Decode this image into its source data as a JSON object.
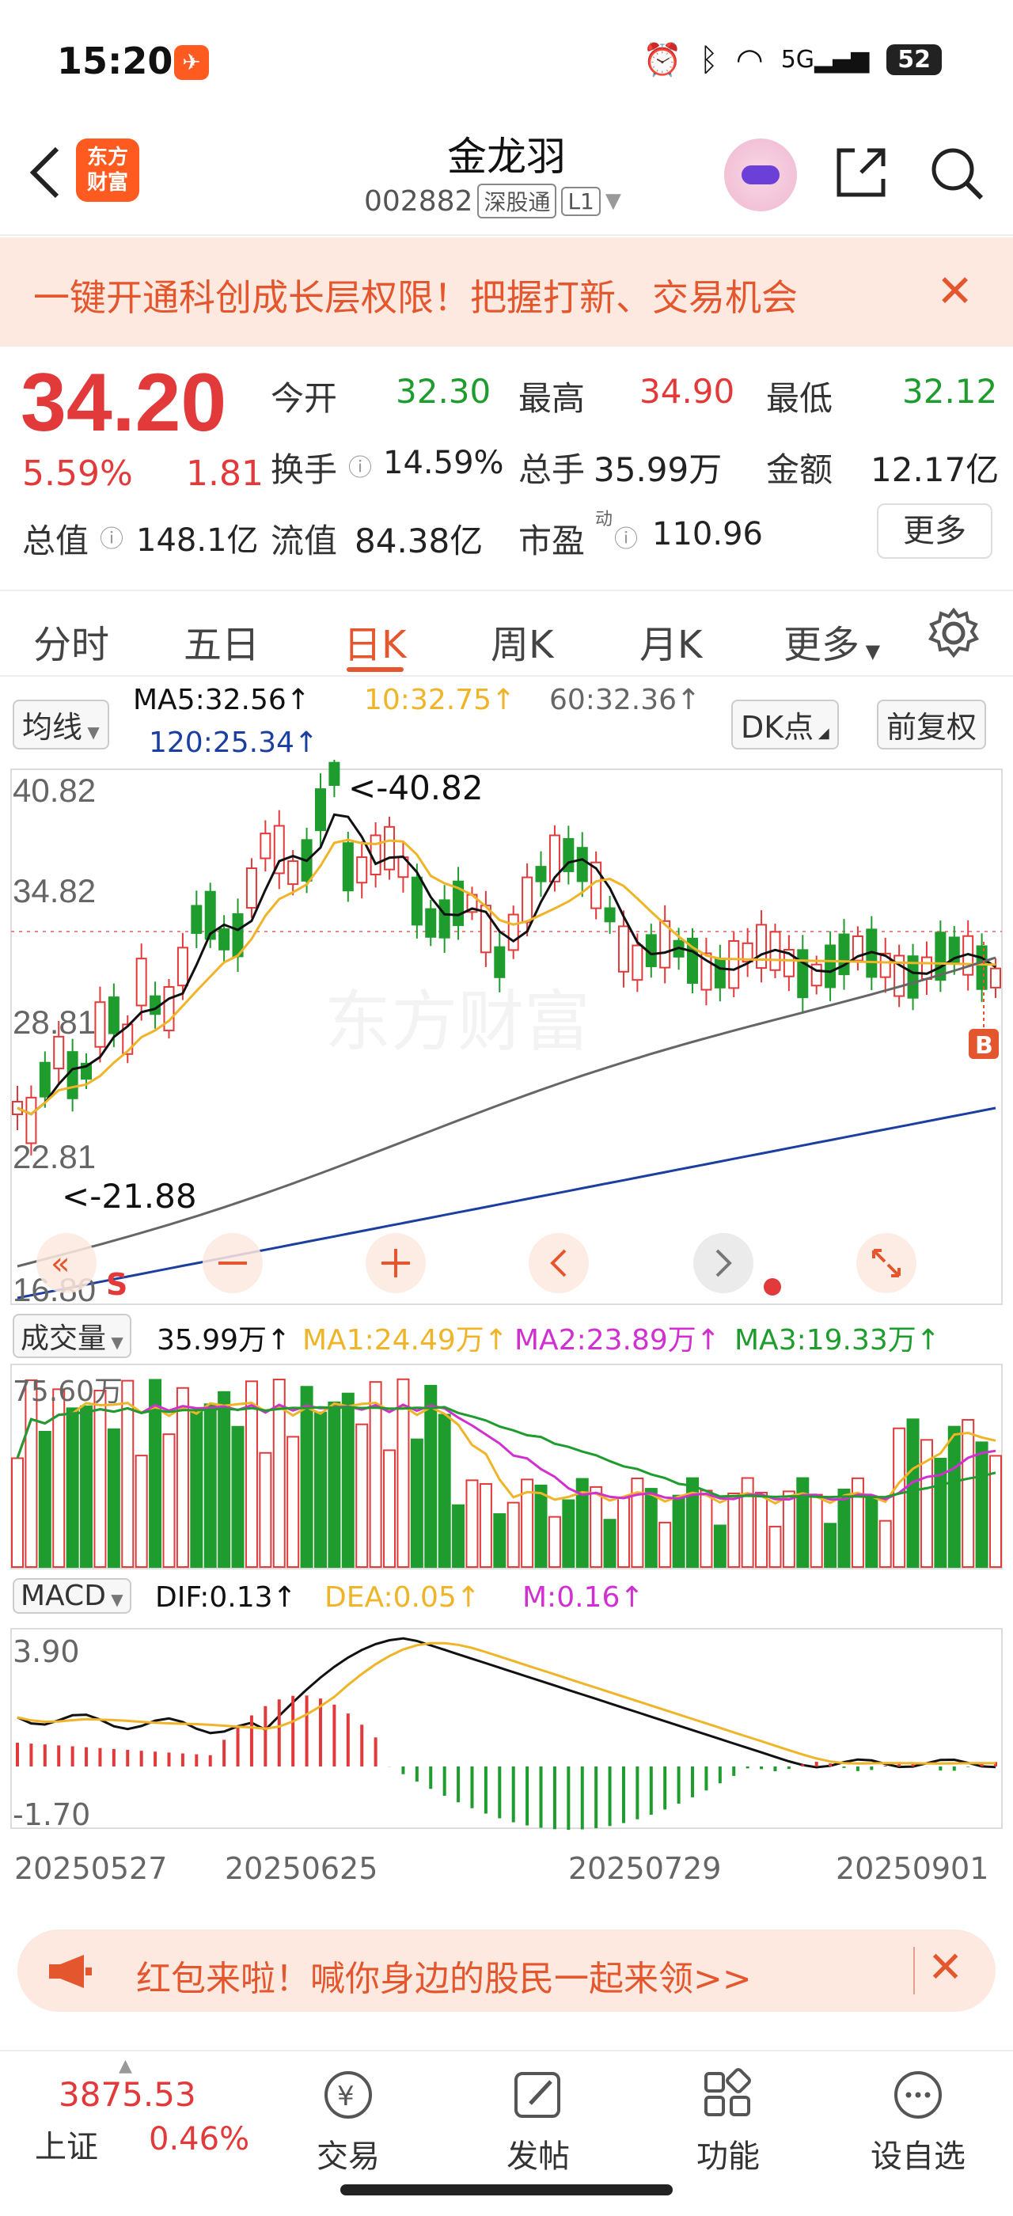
{
  "status_bar": {
    "time": "15:20",
    "battery": "52",
    "network": "5G"
  },
  "header": {
    "app_logo": "东方\n财富",
    "stock_name": "金龙羽",
    "stock_code": "002882",
    "tag1": "深股通",
    "tag2": "L1"
  },
  "banner": {
    "text": "一键开通科创成长层权限！把握打新、交易机会"
  },
  "quote": {
    "price": "34.20",
    "change_pct": "5.59%",
    "change": "1.81",
    "open_label": "今开",
    "open": "32.30",
    "high_label": "最高",
    "high": "34.90",
    "low_label": "最低",
    "low": "32.12",
    "turnover_label": "换手",
    "turnover": "14.59%",
    "volume_label": "总手",
    "volume": "35.99万",
    "amount_label": "金额",
    "amount": "12.17亿",
    "mktcap_label": "总值",
    "mktcap": "148.1亿",
    "float_label": "流值",
    "float": "84.38亿",
    "pe_label": "市盈",
    "pe_sup": "动",
    "pe": "110.96",
    "more_label": "更多"
  },
  "tabs": [
    "分时",
    "五日",
    "日K",
    "周K",
    "月K",
    "更多"
  ],
  "active_tab": "日K",
  "ma": {
    "selector": "均线",
    "ma5": "MA5:32.56↑",
    "ma10": "10:32.75↑",
    "ma60": "60:32.36↑",
    "ma120": "120:25.34↑",
    "dk_label": "DK点",
    "adjust_label": "前复权"
  },
  "kline": {
    "y_labels": [
      "40.82",
      "34.82",
      "28.81",
      "22.81",
      "16.80"
    ],
    "high_marker": "<-40.82",
    "low_marker": "<-21.88",
    "s_marker": "S",
    "b_marker": "B",
    "watermark": "东方财富"
  },
  "volume": {
    "selector": "成交量",
    "total": "35.99万↑",
    "ma1": "MA1:24.49万↑",
    "ma2": "MA2:23.89万↑",
    "ma3": "MA3:19.33万↑",
    "y_label": "75.60万"
  },
  "macd": {
    "selector": "MACD",
    "dif": "DIF:0.13↑",
    "dea": "DEA:0.05↑",
    "m": "M:0.16↑",
    "y_top": "3.90",
    "y_bottom": "-1.70"
  },
  "dates": [
    "20250527",
    "20250625",
    "20250729",
    "20250901"
  ],
  "promo": {
    "text": "红包来啦！喊你身边的股民一起来领>>"
  },
  "bottom_nav": {
    "index_value": "3875.53",
    "index_name": "上证",
    "index_pct": "0.46%",
    "items": [
      "交易",
      "发帖",
      "功能",
      "设自选"
    ]
  },
  "colors": {
    "up": "#e23a3a",
    "down": "#1e9c2d",
    "accent": "#e4572e",
    "ma5": "#111111",
    "ma10": "#f0b429",
    "ma60": "#666666",
    "ma120": "#1b3fa0"
  }
}
